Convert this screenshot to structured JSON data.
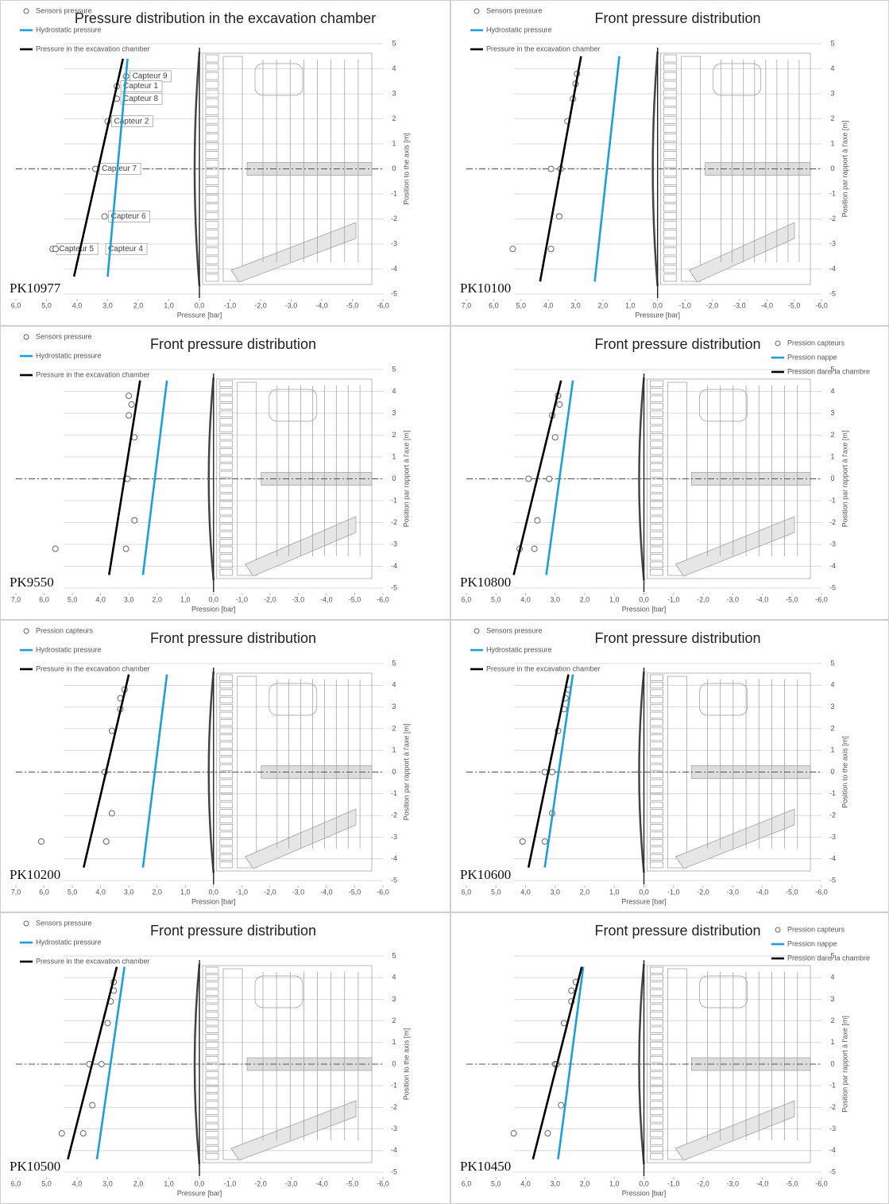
{
  "chart_data": [
    {
      "type": "scatter",
      "title": "Pressure distribution in the excavation chamber",
      "annotation": "PK10977",
      "x_label": "Pressure [bar]",
      "y_label": "Position to the axis [m]",
      "legend": "top-left",
      "grid": true,
      "xlim": [
        6,
        -6
      ],
      "ylim": [
        -5,
        5
      ],
      "xticks": [
        {
          "value": 6,
          "label": "6,0"
        },
        {
          "value": 5,
          "label": "5,0"
        },
        {
          "value": 4,
          "label": "4,0"
        },
        {
          "value": 3,
          "label": "3,0"
        },
        {
          "value": 2,
          "label": "2,0"
        },
        {
          "value": 1,
          "label": "1,0"
        },
        {
          "value": 0,
          "label": "0,0"
        },
        {
          "value": -1,
          "label": "-1,0"
        },
        {
          "value": -2,
          "label": "-2,0"
        },
        {
          "value": -3,
          "label": "-3,0"
        },
        {
          "value": -4,
          "label": "-4,0"
        },
        {
          "value": -5,
          "label": "-5,0"
        },
        {
          "value": -6,
          "label": "-6,0"
        }
      ],
      "yticks": [
        -5,
        -4,
        -3,
        -2,
        -1,
        0,
        1,
        2,
        3,
        4,
        5
      ],
      "series": [
        {
          "name": "Sensors pressure",
          "mode": "markers",
          "color": "#666666",
          "x": [
            2.4,
            2.7,
            2.7,
            3.0,
            3.4,
            3.1,
            4.8,
            4.7
          ],
          "values": [
            3.7,
            3.3,
            2.8,
            1.9,
            0,
            -1.9,
            -3.2,
            -3.2
          ],
          "point_labels": [
            "Capteur 9",
            "Capteur 1",
            "Capteur 8",
            "Capteur 2",
            "Capteur 7",
            "Capteur 6",
            "Capteur 5",
            "Capteur 4"
          ]
        },
        {
          "name": "Hydrostatic pressure",
          "mode": "lines",
          "color": "#1ca0dc",
          "x": [
            3.0,
            2.35
          ],
          "values": [
            -4.3,
            4.4
          ]
        },
        {
          "name": "Pressure in the excavation chamber",
          "mode": "lines",
          "color": "#000000",
          "x": [
            4.1,
            2.5
          ],
          "values": [
            -4.3,
            4.4
          ]
        }
      ]
    },
    {
      "type": "scatter",
      "title": "Front pressure distribution",
      "annotation": "PK10100",
      "x_label": "Pressure [bar]",
      "y_label": "Position par rapport à l'axe [m]",
      "legend": "top-left",
      "grid": true,
      "xlim": [
        7,
        -6
      ],
      "ylim": [
        -5,
        5
      ],
      "xticks": [
        {
          "value": 7,
          "label": "7,0"
        },
        {
          "value": 6,
          "label": "6,0"
        },
        {
          "value": 5,
          "label": "5,0"
        },
        {
          "value": 4,
          "label": "4,0"
        },
        {
          "value": 3,
          "label": "3,0"
        },
        {
          "value": 2,
          "label": "2,0"
        },
        {
          "value": 1,
          "label": "1,0"
        },
        {
          "value": 0,
          "label": "0,0"
        },
        {
          "value": -1,
          "label": "-1,0"
        },
        {
          "value": -2,
          "label": "-2,0"
        },
        {
          "value": -3,
          "label": "-3,0"
        },
        {
          "value": -4,
          "label": "-4,0"
        },
        {
          "value": -5,
          "label": "-5,0"
        },
        {
          "value": -6,
          "label": "-6,0"
        }
      ],
      "yticks": [
        -5,
        -4,
        -3,
        -2,
        -1,
        0,
        1,
        2,
        3,
        4,
        5
      ],
      "series": [
        {
          "name": "Sensors pressure",
          "mode": "markers",
          "color": "#666666",
          "x": [
            2.95,
            3.0,
            3.1,
            3.3,
            3.9,
            3.55,
            3.6,
            3.9,
            5.3
          ],
          "values": [
            3.8,
            3.4,
            2.8,
            1.9,
            0,
            0,
            -1.9,
            -3.2,
            -3.2
          ]
        },
        {
          "name": "Hydrostatic pressure",
          "mode": "lines",
          "color": "#1ca0dc",
          "x": [
            2.3,
            1.4
          ],
          "values": [
            -4.5,
            4.5
          ]
        },
        {
          "name": "Pressure in the excavation chamber",
          "mode": "lines",
          "color": "#000000",
          "x": [
            4.3,
            2.8
          ],
          "values": [
            -4.5,
            4.5
          ]
        }
      ]
    },
    {
      "type": "scatter",
      "title": "Front pressure distribution",
      "annotation": "PK9550",
      "x_label": "Pression [bar]",
      "y_label": "Position par rapport à l'axe [m]",
      "legend": "top-left",
      "grid": true,
      "xlim": [
        7,
        -6
      ],
      "ylim": [
        -5,
        5
      ],
      "xticks": [
        {
          "value": 7,
          "label": "7,0"
        },
        {
          "value": 6,
          "label": "6,0"
        },
        {
          "value": 5,
          "label": "5,0"
        },
        {
          "value": 4,
          "label": "4,0"
        },
        {
          "value": 3,
          "label": "3,0"
        },
        {
          "value": 2,
          "label": "2,0"
        },
        {
          "value": 1,
          "label": "1,0"
        },
        {
          "value": 0,
          "label": "0,0"
        },
        {
          "value": -1,
          "label": "-1,0"
        },
        {
          "value": -2,
          "label": "-2,0"
        },
        {
          "value": -3,
          "label": "-3,0"
        },
        {
          "value": -4,
          "label": "-4,0"
        },
        {
          "value": -5,
          "label": "-5,0"
        },
        {
          "value": -6,
          "label": "-6,0"
        }
      ],
      "yticks": [
        -5,
        -4,
        -3,
        -2,
        -1,
        0,
        1,
        2,
        3,
        4,
        5
      ],
      "series": [
        {
          "name": "Sensors pressure",
          "mode": "markers",
          "color": "#666666",
          "x": [
            3.0,
            2.9,
            3.0,
            2.8,
            3.1,
            3.05,
            2.8,
            3.1,
            5.6
          ],
          "values": [
            3.8,
            3.4,
            2.9,
            1.9,
            0,
            0,
            -1.9,
            -3.2,
            -3.2
          ]
        },
        {
          "name": "Hydrostatic pressure",
          "mode": "lines",
          "color": "#1ca0dc",
          "x": [
            2.5,
            1.65
          ],
          "values": [
            -4.4,
            4.5
          ]
        },
        {
          "name": "Pressure in the excavation chamber",
          "mode": "lines",
          "color": "#000000",
          "x": [
            3.7,
            2.6
          ],
          "values": [
            -4.4,
            4.5
          ]
        }
      ]
    },
    {
      "type": "scatter",
      "title": "Front pressure distribution",
      "annotation": "PK10800",
      "x_label": "Pression [bar]",
      "y_label": "Position par rapport à l'axe [m]",
      "legend": "top-right",
      "grid": true,
      "xlim": [
        6,
        -6
      ],
      "ylim": [
        -5,
        5
      ],
      "xticks": [
        {
          "value": 6,
          "label": "6,0"
        },
        {
          "value": 5,
          "label": "5,0"
        },
        {
          "value": 4,
          "label": "4,0"
        },
        {
          "value": 3,
          "label": "3,0"
        },
        {
          "value": 2,
          "label": "2,0"
        },
        {
          "value": 1,
          "label": "1,0"
        },
        {
          "value": 0,
          "label": "0,0"
        },
        {
          "value": -1,
          "label": "-1,0"
        },
        {
          "value": -2,
          "label": "-2,0"
        },
        {
          "value": -3,
          "label": "-3,0"
        },
        {
          "value": -4,
          "label": "-4,0"
        },
        {
          "value": -5,
          "label": "-5,0"
        },
        {
          "value": -6,
          "label": "-6,0"
        }
      ],
      "yticks": [
        -5,
        -4,
        -3,
        -2,
        -1,
        0,
        1,
        2,
        3,
        4,
        5
      ],
      "series": [
        {
          "name": "Pression capteurs",
          "mode": "markers",
          "color": "#666666",
          "x": [
            2.9,
            2.85,
            3.1,
            3.0,
            3.9,
            3.2,
            3.6,
            4.2,
            3.7
          ],
          "values": [
            3.8,
            3.4,
            2.9,
            1.9,
            0,
            0,
            -1.9,
            -3.2,
            -3.2
          ]
        },
        {
          "name": "Pression nappe",
          "mode": "lines",
          "color": "#1ca0dc",
          "x": [
            3.3,
            2.4
          ],
          "values": [
            -4.4,
            4.5
          ]
        },
        {
          "name": "Pression dans la chambre",
          "mode": "lines",
          "color": "#000000",
          "x": [
            4.4,
            2.8
          ],
          "values": [
            -4.4,
            4.5
          ]
        }
      ]
    },
    {
      "type": "scatter",
      "title": "Front pressure distribution",
      "annotation": "PK10200",
      "x_label": "Pression [bar]",
      "y_label": "Position par rapport à l'axe [m]",
      "legend": "top-left",
      "grid": true,
      "xlim": [
        7,
        -6
      ],
      "ylim": [
        -5,
        5
      ],
      "xticks": [
        {
          "value": 7,
          "label": "7,0"
        },
        {
          "value": 6,
          "label": "6,0"
        },
        {
          "value": 5,
          "label": "5,0"
        },
        {
          "value": 4,
          "label": "4,0"
        },
        {
          "value": 3,
          "label": "3,0"
        },
        {
          "value": 2,
          "label": "2,0"
        },
        {
          "value": 1,
          "label": "1,0"
        },
        {
          "value": 0,
          "label": "0,0"
        },
        {
          "value": -1,
          "label": "-1,0"
        },
        {
          "value": -2,
          "label": "-2,0"
        },
        {
          "value": -3,
          "label": "-3,0"
        },
        {
          "value": -4,
          "label": "-4,0"
        },
        {
          "value": -5,
          "label": "-5,0"
        },
        {
          "value": -6,
          "label": "-6,0"
        }
      ],
      "yticks": [
        -5,
        -4,
        -3,
        -2,
        -1,
        0,
        1,
        2,
        3,
        4,
        5
      ],
      "series": [
        {
          "name": "Pression capteurs",
          "mode": "markers",
          "color": "#666666",
          "x": [
            3.15,
            3.3,
            3.3,
            3.6,
            3.85,
            3.6,
            3.8,
            6.1
          ],
          "values": [
            3.8,
            3.4,
            2.9,
            1.9,
            0,
            -1.9,
            -3.2,
            -3.2
          ]
        },
        {
          "name": "Hydrostatic pressure",
          "mode": "lines",
          "color": "#1ca0dc",
          "x": [
            2.5,
            1.65
          ],
          "values": [
            -4.4,
            4.5
          ]
        },
        {
          "name": "Pressure in the excavation chamber",
          "mode": "lines",
          "color": "#000000",
          "x": [
            4.6,
            3.0
          ],
          "values": [
            -4.4,
            4.5
          ]
        }
      ]
    },
    {
      "type": "scatter",
      "title": "Front pressure distribution",
      "annotation": "PK10600",
      "x_label": "Pressure [bar]",
      "y_label": "Position to the axis [m]",
      "legend": "top-left",
      "grid": true,
      "xlim": [
        6,
        -6
      ],
      "ylim": [
        -5,
        5
      ],
      "xticks": [
        {
          "value": 6,
          "label": "6,0"
        },
        {
          "value": 5,
          "label": "5,0"
        },
        {
          "value": 4,
          "label": "4,0"
        },
        {
          "value": 3,
          "label": "3,0"
        },
        {
          "value": 2,
          "label": "2,0"
        },
        {
          "value": 1,
          "label": "1,0"
        },
        {
          "value": 0,
          "label": "0,0"
        },
        {
          "value": -1,
          "label": "-1,0"
        },
        {
          "value": -2,
          "label": "-2,0"
        },
        {
          "value": -3,
          "label": "-3,0"
        },
        {
          "value": -4,
          "label": "-4,0"
        },
        {
          "value": -5,
          "label": "-5,0"
        },
        {
          "value": -6,
          "label": "-6,0"
        }
      ],
      "yticks": [
        -5,
        -4,
        -3,
        -2,
        -1,
        0,
        1,
        2,
        3,
        4,
        5
      ],
      "series": [
        {
          "name": "Sensors pressure",
          "mode": "markers",
          "color": "#666666",
          "x": [
            2.55,
            2.65,
            2.7,
            2.9,
            3.35,
            3.1,
            3.1,
            3.35,
            4.1
          ],
          "values": [
            3.8,
            3.4,
            2.9,
            1.9,
            0,
            0,
            -1.9,
            -3.2,
            -3.2
          ]
        },
        {
          "name": "Hydrostatic pressure",
          "mode": "lines",
          "color": "#1ca0dc",
          "x": [
            3.35,
            2.4
          ],
          "values": [
            -4.4,
            4.5
          ]
        },
        {
          "name": "Pressure in the excavation chamber",
          "mode": "lines",
          "color": "#000000",
          "x": [
            3.9,
            2.55
          ],
          "values": [
            -4.4,
            4.5
          ]
        }
      ]
    },
    {
      "type": "scatter",
      "title": "Front pressure distribution",
      "annotation": "PK10500",
      "x_label": "Pressure [bar]",
      "y_label": "Position to the axis [m]",
      "legend": "top-left",
      "grid": true,
      "xlim": [
        6,
        -6
      ],
      "ylim": [
        -5,
        5
      ],
      "xticks": [
        {
          "value": 6,
          "label": "6,0"
        },
        {
          "value": 5,
          "label": "5,0"
        },
        {
          "value": 4,
          "label": "4,0"
        },
        {
          "value": 3,
          "label": "3,0"
        },
        {
          "value": 2,
          "label": "2,0"
        },
        {
          "value": 1,
          "label": "1,0"
        },
        {
          "value": 0,
          "label": "0,0"
        },
        {
          "value": -1,
          "label": "-1,0"
        },
        {
          "value": -2,
          "label": "-2,0"
        },
        {
          "value": -3,
          "label": "-3,0"
        },
        {
          "value": -4,
          "label": "-4,0"
        },
        {
          "value": -5,
          "label": "-5,0"
        },
        {
          "value": -6,
          "label": "-6,0"
        }
      ],
      "yticks": [
        -5,
        -4,
        -3,
        -2,
        -1,
        0,
        1,
        2,
        3,
        4,
        5
      ],
      "series": [
        {
          "name": "Sensors pressure",
          "mode": "markers",
          "color": "#666666",
          "x": [
            2.8,
            2.8,
            2.9,
            3.0,
            3.6,
            3.2,
            3.5,
            4.5,
            3.8
          ],
          "values": [
            3.8,
            3.4,
            2.9,
            1.9,
            0,
            0,
            -1.9,
            -3.2,
            -3.2
          ]
        },
        {
          "name": "Hydrostatic pressure",
          "mode": "lines",
          "color": "#1ca0dc",
          "x": [
            3.35,
            2.45
          ],
          "values": [
            -4.4,
            4.5
          ]
        },
        {
          "name": "Pressure in the excavation chamber",
          "mode": "lines",
          "color": "#000000",
          "x": [
            4.3,
            2.7
          ],
          "values": [
            -4.4,
            4.5
          ]
        }
      ]
    },
    {
      "type": "scatter",
      "title": "Front pressure distribution",
      "annotation": "PK10450",
      "x_label": "Pression [bar]",
      "y_label": "Position par rapport à l'axe [m]",
      "legend": "top-right",
      "grid": true,
      "xlim": [
        6,
        -6
      ],
      "ylim": [
        -5,
        5
      ],
      "xticks": [
        {
          "value": 6,
          "label": "6,0"
        },
        {
          "value": 5,
          "label": "5,0"
        },
        {
          "value": 4,
          "label": "4,0"
        },
        {
          "value": 3,
          "label": "3,0"
        },
        {
          "value": 2,
          "label": "2,0"
        },
        {
          "value": 1,
          "label": "1,0"
        },
        {
          "value": 0,
          "label": "0,0"
        },
        {
          "value": -1,
          "label": "-1,0"
        },
        {
          "value": -2,
          "label": "-2,0"
        },
        {
          "value": -3,
          "label": "-3,0"
        },
        {
          "value": -4,
          "label": "-4,0"
        },
        {
          "value": -5,
          "label": "-5,0"
        },
        {
          "value": -6,
          "label": "-6,0"
        }
      ],
      "yticks": [
        -5,
        -4,
        -3,
        -2,
        -1,
        0,
        1,
        2,
        3,
        4,
        5
      ],
      "series": [
        {
          "name": "Pression capteurs",
          "mode": "markers",
          "color": "#666666",
          "x": [
            2.3,
            2.45,
            2.45,
            2.7,
            3.0,
            2.95,
            2.8,
            3.25,
            4.4
          ],
          "values": [
            3.8,
            3.4,
            2.9,
            1.9,
            0,
            0,
            -1.9,
            -3.2,
            -3.2
          ]
        },
        {
          "name": "Pression nappe",
          "mode": "lines",
          "color": "#1ca0dc",
          "x": [
            2.9,
            2.05
          ],
          "values": [
            -4.4,
            4.5
          ]
        },
        {
          "name": "Pression dans la chambre",
          "mode": "lines",
          "color": "#000000",
          "x": [
            3.75,
            2.1
          ],
          "values": [
            -4.4,
            4.5
          ]
        }
      ]
    }
  ]
}
